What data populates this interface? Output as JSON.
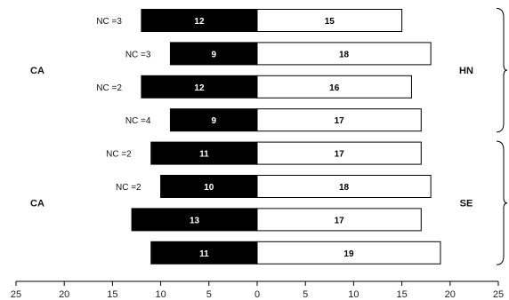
{
  "chart_data": {
    "type": "bar",
    "orientation": "horizontal-diverging",
    "title": "",
    "xlabel": "",
    "ylabel": "",
    "xlim": [
      -25,
      25
    ],
    "x_ticks": [
      -25,
      -20,
      -15,
      -10,
      -5,
      0,
      5,
      10,
      15,
      20,
      25
    ],
    "x_tick_labels": [
      "25",
      "20",
      "15",
      "10",
      "5",
      "0",
      "5",
      "10",
      "15",
      "20",
      "25"
    ],
    "grid": false,
    "legend": "none",
    "colors": {
      "left": "#000000",
      "right": "#ffffff",
      "outline": "#000000"
    },
    "rows": [
      {
        "nc_label": "NC =3",
        "left": 12,
        "right": 15
      },
      {
        "nc_label": "NC =3",
        "left": 9,
        "right": 18
      },
      {
        "nc_label": "NC =2",
        "left": 12,
        "right": 16
      },
      {
        "nc_label": "NC =4",
        "left": 9,
        "right": 17
      },
      {
        "nc_label": "NC =2",
        "left": 11,
        "right": 17
      },
      {
        "nc_label": "NC =2",
        "left": 10,
        "right": 18
      },
      {
        "nc_label": "",
        "left": 13,
        "right": 17
      },
      {
        "nc_label": "",
        "left": 11,
        "right": 19
      }
    ],
    "groups": [
      {
        "left_label": "CA",
        "right_label": "HN",
        "rows": [
          0,
          3
        ]
      },
      {
        "left_label": "CA",
        "right_label": "SE",
        "rows": [
          4,
          7
        ]
      }
    ]
  }
}
